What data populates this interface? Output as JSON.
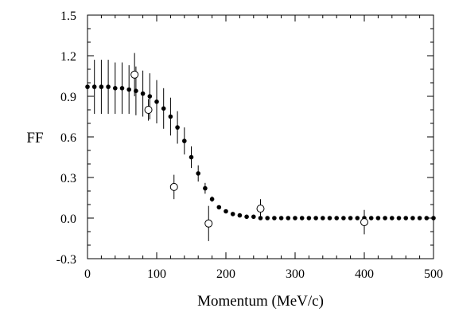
{
  "chart_data": {
    "type": "scatter",
    "title": "",
    "xlabel": "Momentum (MeV/c)",
    "ylabel": "FF",
    "xlim": [
      0,
      500
    ],
    "ylim": [
      -0.3,
      1.5
    ],
    "xticks": [
      0,
      100,
      200,
      300,
      400,
      500
    ],
    "yticks": [
      -0.3,
      0.0,
      0.3,
      0.6,
      0.9,
      1.2,
      1.5
    ],
    "xtick_labels": [
      "0",
      "100",
      "200",
      "300",
      "400",
      "500"
    ],
    "ytick_labels": [
      "-0.3",
      "0.0",
      "0.3",
      "0.6",
      "0.9",
      "1.2",
      "1.5"
    ],
    "grid": false,
    "series": [
      {
        "marker": "filled-circle",
        "color": "#000000",
        "x": [
          0,
          10,
          20,
          30,
          40,
          50,
          60,
          70,
          80,
          90,
          100,
          110,
          120,
          130,
          140,
          150,
          160,
          170,
          180,
          190,
          200,
          210,
          220,
          230,
          240,
          250,
          260,
          270,
          280,
          290,
          300,
          310,
          320,
          330,
          340,
          350,
          360,
          370,
          380,
          390,
          400,
          410,
          420,
          430,
          440,
          450,
          460,
          470,
          480,
          490,
          500
        ],
        "y": [
          0.97,
          0.97,
          0.97,
          0.97,
          0.96,
          0.96,
          0.95,
          0.94,
          0.92,
          0.9,
          0.86,
          0.81,
          0.75,
          0.67,
          0.57,
          0.45,
          0.33,
          0.22,
          0.14,
          0.08,
          0.05,
          0.03,
          0.02,
          0.01,
          0.01,
          0.0,
          0.0,
          0.0,
          0.0,
          0.0,
          0.0,
          0.0,
          0.0,
          0.0,
          0.0,
          0.0,
          0.0,
          0.0,
          0.0,
          0.0,
          0.0,
          0.0,
          0.0,
          0.0,
          0.0,
          0.0,
          0.0,
          0.0,
          0.0,
          0.0,
          0.0
        ],
        "err": [
          0.2,
          0.2,
          0.2,
          0.2,
          0.19,
          0.19,
          0.18,
          0.18,
          0.17,
          0.17,
          0.16,
          0.15,
          0.14,
          0.12,
          0.1,
          0.08,
          0.06,
          0.04,
          0.02,
          0,
          0,
          0,
          0,
          0,
          0,
          0,
          0,
          0,
          0,
          0,
          0,
          0,
          0,
          0,
          0,
          0,
          0,
          0,
          0,
          0,
          0,
          0,
          0,
          0,
          0,
          0,
          0,
          0,
          0,
          0,
          0
        ]
      },
      {
        "marker": "open-circle",
        "color": "#000000",
        "x": [
          68,
          88,
          125,
          175,
          250,
          400
        ],
        "y": [
          1.06,
          0.8,
          0.23,
          -0.04,
          0.07,
          -0.03
        ],
        "err": [
          0.16,
          0.08,
          0.09,
          0.13,
          0.07,
          0.09
        ]
      }
    ]
  }
}
